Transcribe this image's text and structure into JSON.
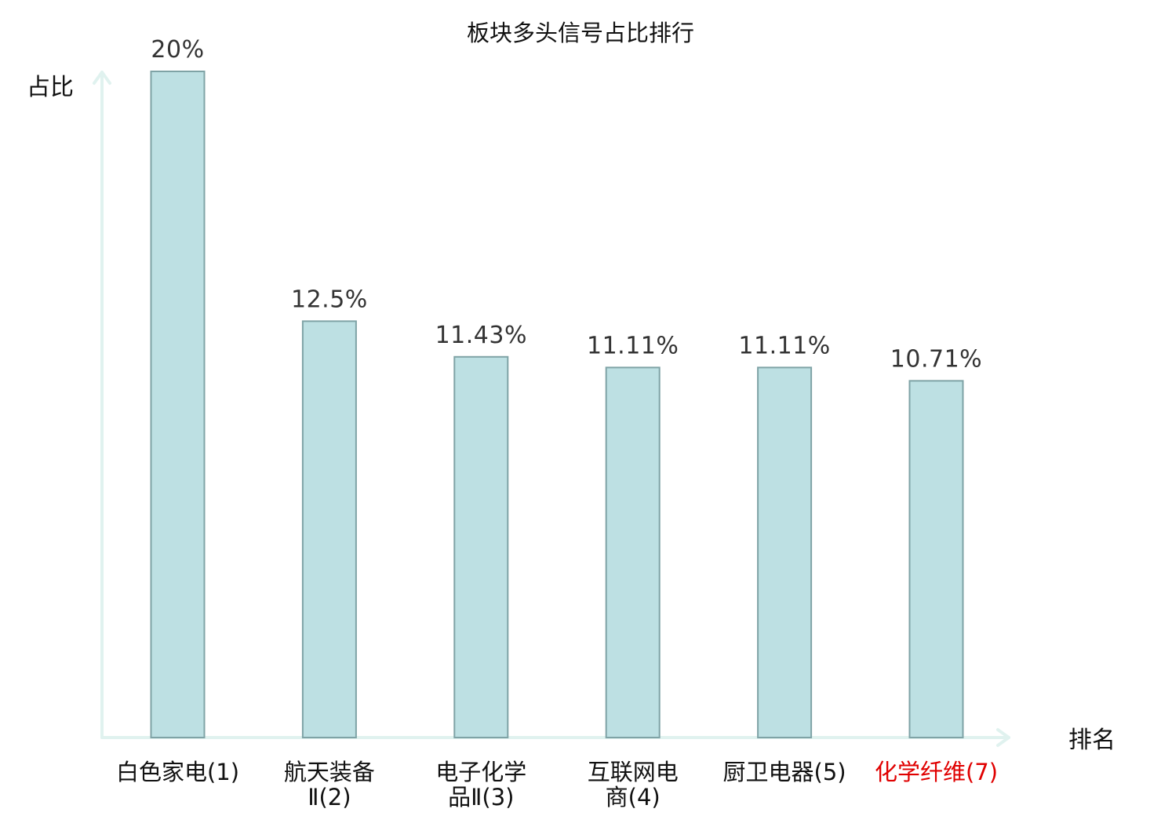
{
  "chart_data": {
    "type": "bar",
    "title": "板块多头信号占比排行",
    "ylabel": "占比",
    "xlabel": "排名",
    "categories": [
      {
        "label_lines": [
          "白色家电(1)"
        ],
        "color": "#111111"
      },
      {
        "label_lines": [
          "航天装备",
          "Ⅱ(2)"
        ],
        "color": "#111111"
      },
      {
        "label_lines": [
          "电子化学",
          "品Ⅱ(3)"
        ],
        "color": "#111111"
      },
      {
        "label_lines": [
          "互联网电",
          "商(4)"
        ],
        "color": "#111111"
      },
      {
        "label_lines": [
          "厨卫电器(5)"
        ],
        "color": "#111111"
      },
      {
        "label_lines": [
          "化学纤维(7)"
        ],
        "color": "#e00000"
      }
    ],
    "values": [
      20,
      12.5,
      11.43,
      11.11,
      11.11,
      10.71
    ],
    "value_labels": [
      "20%",
      "12.5%",
      "11.43%",
      "11.11%",
      "11.11%",
      "10.71%"
    ],
    "ylim": [
      0,
      20
    ],
    "grid": false,
    "bar_color": "#bde0e3",
    "bar_edge_color": "#7fa3a6",
    "axis_color": "#e0f2ef"
  }
}
